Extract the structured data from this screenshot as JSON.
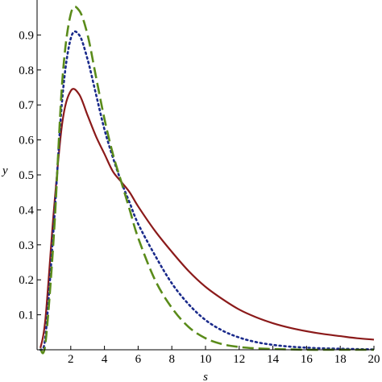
{
  "chart_data": {
    "type": "line",
    "title": "",
    "xlabel": "s",
    "ylabel": "y",
    "xlim": [
      0,
      20
    ],
    "ylim": [
      0,
      1.0
    ],
    "x_ticks": [
      2,
      4,
      6,
      8,
      10,
      12,
      14,
      16,
      18,
      20
    ],
    "y_ticks": [
      0.1,
      0.2,
      0.3,
      0.4,
      0.5,
      0.6,
      0.7,
      0.8,
      0.9
    ],
    "x_tick_labels": [
      "2",
      "4",
      "6",
      "8",
      "10",
      "12",
      "14",
      "16",
      "18",
      "20"
    ],
    "y_tick_labels": [
      "0.1",
      "0.2",
      "0.3",
      "0.4",
      "0.5",
      "0.6",
      "0.7",
      "0.8",
      "0.9"
    ],
    "grid": false,
    "legend": "none",
    "x": [
      0.2,
      0.5,
      1.0,
      1.5,
      2.0,
      2.5,
      3.0,
      3.5,
      4.0,
      4.5,
      5.0,
      5.5,
      6.0,
      7.0,
      8.0,
      9.0,
      10.0,
      11.0,
      12.0,
      13.0,
      14.0,
      15.0,
      16.0,
      17.0,
      18.0,
      19.0,
      20.0
    ],
    "series": [
      {
        "style": "solid",
        "color": "#8b1a1a",
        "values": [
          0.005,
          0.09,
          0.4,
          0.65,
          0.74,
          0.73,
          0.67,
          0.61,
          0.56,
          0.51,
          0.48,
          0.45,
          0.41,
          0.34,
          0.28,
          0.225,
          0.18,
          0.145,
          0.115,
          0.093,
          0.076,
          0.063,
          0.053,
          0.045,
          0.039,
          0.033,
          0.029
        ]
      },
      {
        "style": "dotted",
        "color": "#1a2a8b",
        "values": [
          0.0,
          0.04,
          0.36,
          0.72,
          0.89,
          0.9,
          0.83,
          0.73,
          0.63,
          0.55,
          0.48,
          0.42,
          0.36,
          0.27,
          0.19,
          0.13,
          0.085,
          0.055,
          0.035,
          0.022,
          0.014,
          0.009,
          0.006,
          0.004,
          0.003,
          0.002,
          0.001
        ]
      },
      {
        "style": "dashed",
        "color": "#5a8b1a",
        "values": [
          0.0,
          0.02,
          0.33,
          0.77,
          0.96,
          0.97,
          0.9,
          0.78,
          0.66,
          0.56,
          0.48,
          0.4,
          0.32,
          0.2,
          0.12,
          0.065,
          0.033,
          0.016,
          0.008,
          0.004,
          0.002,
          0.001,
          0.0,
          0.0,
          0.0,
          0.0,
          0.0
        ]
      }
    ]
  }
}
